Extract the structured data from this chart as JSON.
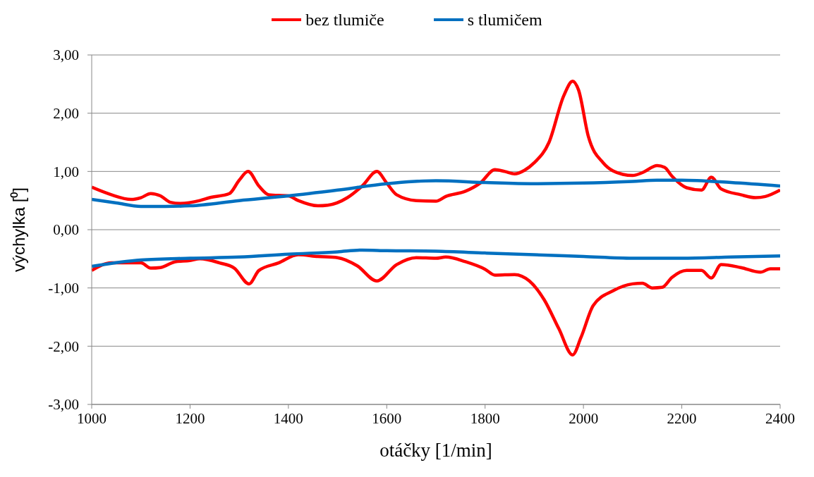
{
  "chart_data": {
    "type": "line",
    "xlabel": "otáčky [1/min]",
    "ylabel": "výchylka [⁰]",
    "xlim": [
      1000,
      2400
    ],
    "xticks": [
      1000,
      1200,
      1400,
      1600,
      1800,
      2000,
      2200,
      2400
    ],
    "ylim": [
      -3,
      3
    ],
    "yticks": [
      {
        "value": -3,
        "label": "-3,00"
      },
      {
        "value": -2,
        "label": "-2,00"
      },
      {
        "value": -1,
        "label": "-1,00"
      },
      {
        "value": 0,
        "label": "0,00"
      },
      {
        "value": 1,
        "label": "1,00"
      },
      {
        "value": 2,
        "label": "2,00"
      },
      {
        "value": 3,
        "label": "3,00"
      }
    ],
    "grid": "y",
    "legend": "top",
    "marker": "none",
    "line_style": "solid",
    "series": [
      {
        "name": "bez tlumiče",
        "color": "#ff0000",
        "x": [
          1000,
          1040,
          1080,
          1100,
          1120,
          1140,
          1160,
          1180,
          1220,
          1240,
          1280,
          1300,
          1318,
          1340,
          1360,
          1400,
          1420,
          1460,
          1480,
          1520,
          1550,
          1580,
          1600,
          1620,
          1660,
          1700,
          1720,
          1760,
          1790,
          1820,
          1840,
          1860,
          1880,
          1900,
          1930,
          1960,
          1978,
          1990,
          2010,
          2040,
          2080,
          2100,
          2120,
          2150,
          2165,
          2180,
          2210,
          2240,
          2260,
          2280,
          2320,
          2350,
          2370,
          2400
        ],
        "values": [
          0.73,
          0.6,
          0.52,
          0.55,
          0.62,
          0.58,
          0.47,
          0.45,
          0.5,
          0.55,
          0.62,
          0.85,
          1.0,
          0.75,
          0.6,
          0.58,
          0.5,
          0.41,
          0.42,
          0.55,
          0.75,
          1.0,
          0.8,
          0.6,
          0.5,
          0.49,
          0.57,
          0.66,
          0.8,
          1.03,
          1.0,
          0.96,
          1.02,
          1.15,
          1.5,
          2.3,
          2.55,
          2.4,
          1.6,
          1.15,
          0.95,
          0.93,
          0.98,
          1.1,
          1.07,
          0.92,
          0.72,
          0.68,
          0.9,
          0.7,
          0.6,
          0.55,
          0.57,
          0.68
        ]
      },
      {
        "color": "#ff0000",
        "x": [
          1000,
          1040,
          1080,
          1100,
          1120,
          1140,
          1170,
          1200,
          1220,
          1260,
          1290,
          1320,
          1340,
          1380,
          1420,
          1460,
          1500,
          1540,
          1580,
          1620,
          1660,
          1700,
          1720,
          1760,
          1800,
          1820,
          1860,
          1890,
          1920,
          1950,
          1978,
          1995,
          2020,
          2060,
          2100,
          2120,
          2140,
          2160,
          2180,
          2210,
          2240,
          2260,
          2280,
          2320,
          2360,
          2380,
          2400
        ],
        "values": [
          -0.7,
          -0.57,
          -0.57,
          -0.57,
          -0.66,
          -0.65,
          -0.55,
          -0.53,
          -0.5,
          -0.57,
          -0.66,
          -0.93,
          -0.7,
          -0.57,
          -0.43,
          -0.46,
          -0.48,
          -0.62,
          -0.88,
          -0.6,
          -0.48,
          -0.49,
          -0.47,
          -0.55,
          -0.68,
          -0.78,
          -0.77,
          -0.88,
          -1.2,
          -1.7,
          -2.15,
          -1.85,
          -1.3,
          -1.05,
          -0.93,
          -0.92,
          -1.0,
          -0.99,
          -0.82,
          -0.7,
          -0.7,
          -0.83,
          -0.6,
          -0.65,
          -0.73,
          -0.67,
          -0.67
        ]
      },
      {
        "name": "s tlumičem",
        "color": "#0070c0",
        "x": [
          1000,
          1050,
          1100,
          1150,
          1200,
          1300,
          1400,
          1500,
          1600,
          1700,
          1800,
          1900,
          2000,
          2100,
          2150,
          2200,
          2300,
          2400
        ],
        "values": [
          0.52,
          0.46,
          0.4,
          0.4,
          0.41,
          0.5,
          0.58,
          0.68,
          0.79,
          0.84,
          0.81,
          0.79,
          0.8,
          0.83,
          0.85,
          0.85,
          0.81,
          0.75
        ]
      },
      {
        "color": "#0070c0",
        "x": [
          1000,
          1100,
          1200,
          1300,
          1400,
          1500,
          1550,
          1600,
          1700,
          1800,
          1900,
          2000,
          2100,
          2200,
          2300,
          2400
        ],
        "values": [
          -0.63,
          -0.52,
          -0.49,
          -0.47,
          -0.42,
          -0.38,
          -0.35,
          -0.36,
          -0.37,
          -0.4,
          -0.43,
          -0.46,
          -0.49,
          -0.49,
          -0.47,
          -0.45
        ]
      }
    ]
  }
}
